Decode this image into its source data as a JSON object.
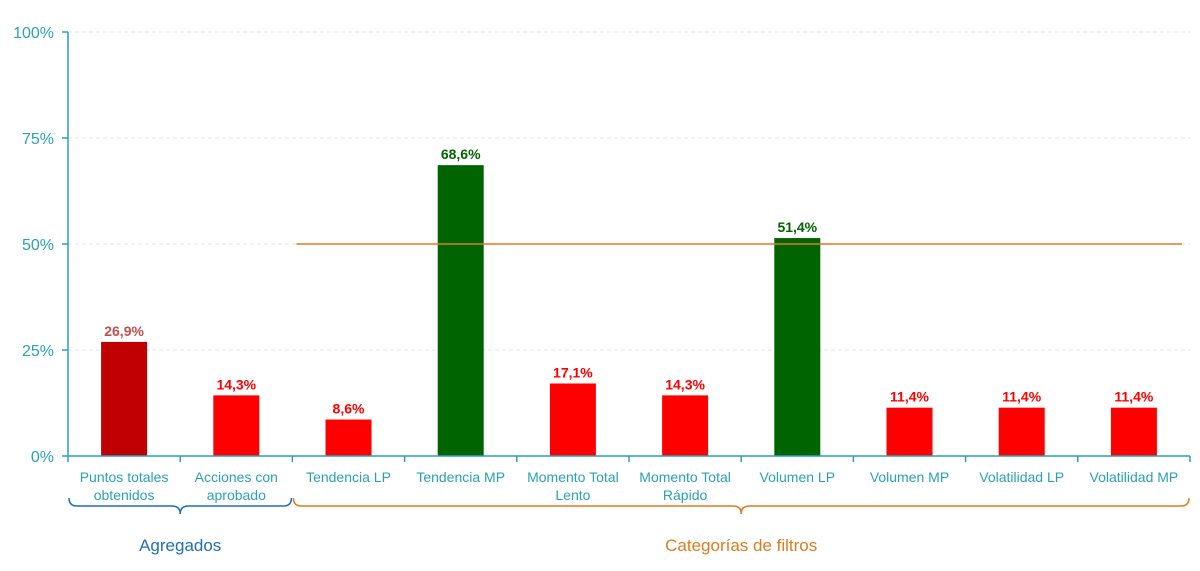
{
  "chart_data": {
    "type": "bar",
    "categories": [
      [
        "Puntos totales",
        "obtenidos"
      ],
      [
        "Acciones con",
        "aprobado"
      ],
      [
        "Tendencia LP"
      ],
      [
        "Tendencia MP"
      ],
      [
        "Momento Total",
        "Lento"
      ],
      [
        "Momento Total",
        "Rápido"
      ],
      [
        "Volumen LP"
      ],
      [
        "Volumen MP"
      ],
      [
        "Volatilidad LP"
      ],
      [
        "Volatilidad MP"
      ]
    ],
    "values": [
      26.9,
      14.3,
      8.6,
      68.6,
      17.1,
      14.3,
      51.4,
      11.4,
      11.4,
      11.4
    ],
    "value_labels": [
      "26,9%",
      "14,3%",
      "8,6%",
      "68,6%",
      "17,1%",
      "14,3%",
      "51,4%",
      "11,4%",
      "11,4%",
      "11,4%"
    ],
    "bar_colors": [
      "#c00000",
      "#ff0000",
      "#ff0000",
      "#006400",
      "#ff0000",
      "#ff0000",
      "#006400",
      "#ff0000",
      "#ff0000",
      "#ff0000"
    ],
    "label_colors": [
      "#c0504d",
      "#ff0000",
      "#ff0000",
      "#006400",
      "#ff0000",
      "#ff0000",
      "#006400",
      "#ff0000",
      "#ff0000",
      "#ff0000"
    ],
    "ylim": [
      0,
      100
    ],
    "yticks": [
      0,
      25,
      50,
      75,
      100
    ],
    "ytick_labels": [
      "0%",
      "25%",
      "50%",
      "75%",
      "100%"
    ],
    "grid": true,
    "reference_line": {
      "value": 50,
      "from_category": 2,
      "to_category": 9,
      "color": "#e07a1f"
    },
    "groups": [
      {
        "label": "Agregados",
        "from_category": 0,
        "to_category": 1,
        "color": "#1f6fb5"
      },
      {
        "label": "Categorías de filtros",
        "from_category": 2,
        "to_category": 9,
        "color": "#e07a1f"
      }
    ],
    "colors": {
      "axis": "#2aa1b8",
      "grid": "#e6e6e6"
    }
  }
}
